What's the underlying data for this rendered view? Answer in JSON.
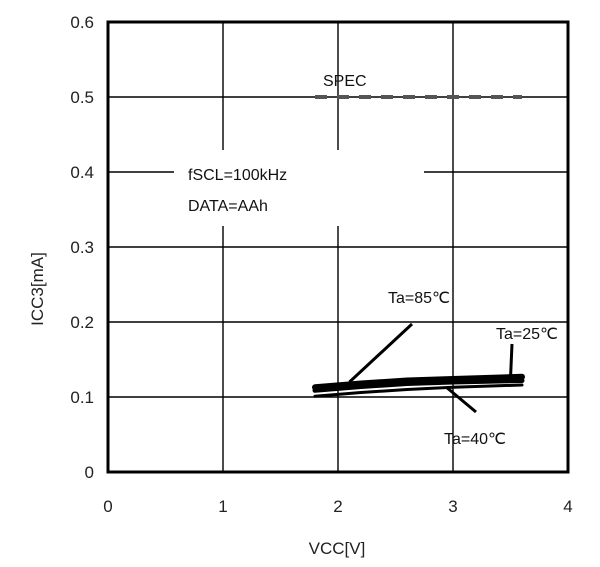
{
  "chart_data": {
    "type": "line",
    "xlabel": "VCC[V]",
    "ylabel": "ICC3[mA]",
    "xlim": [
      0,
      4
    ],
    "ylim": [
      0,
      0.6
    ],
    "x_ticks": [
      "0",
      "1",
      "2",
      "3",
      "4"
    ],
    "y_ticks": [
      "0",
      "0.1",
      "0.2",
      "0.3",
      "0.4",
      "0.5",
      "0.6"
    ],
    "grid": true,
    "series": [
      {
        "name": "Ta=85℃",
        "x": [
          1.8,
          2.2,
          2.6,
          3.0,
          3.6
        ],
        "y": [
          0.113,
          0.118,
          0.122,
          0.124,
          0.127
        ],
        "color": "#000000"
      },
      {
        "name": "Ta=25℃",
        "x": [
          1.8,
          2.2,
          2.6,
          3.0,
          3.6
        ],
        "y": [
          0.109,
          0.114,
          0.118,
          0.12,
          0.122
        ],
        "color": "#000000"
      },
      {
        "name": "Ta=40℃",
        "x": [
          1.8,
          2.2,
          2.6,
          3.0,
          3.6
        ],
        "y": [
          0.101,
          0.106,
          0.11,
          0.113,
          0.116
        ],
        "color": "#000000"
      },
      {
        "name": "SPEC",
        "x": [
          1.8,
          3.6
        ],
        "y": [
          0.5,
          0.5
        ],
        "color": "#555555",
        "style": "dashed"
      }
    ],
    "annotations": {
      "conditions": [
        "fSCL=100kHz",
        "DATA=AAh"
      ],
      "labels": [
        {
          "text": "SPEC",
          "target_x": 2.7,
          "target_y": 0.5
        },
        {
          "text": "Ta=85℃",
          "target_x": 2.1,
          "target_y": 0.12
        },
        {
          "text": "Ta=25℃",
          "target_x": 3.5,
          "target_y": 0.125
        },
        {
          "text": "Ta=40℃",
          "target_x": 2.95,
          "target_y": 0.112
        }
      ]
    }
  }
}
